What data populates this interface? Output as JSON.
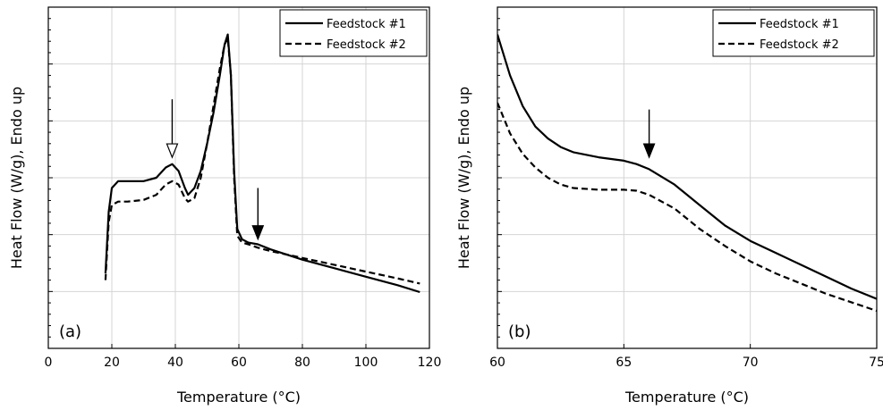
{
  "chart_data": [
    {
      "type": "line",
      "panel_label": "(a)",
      "xlabel": "Temperature (°C)",
      "ylabel": "Heat Flow (W/g), Endo up",
      "xlim": [
        0,
        120
      ],
      "xticks": [
        0,
        20,
        40,
        60,
        80,
        100,
        120
      ],
      "ylim": [
        0,
        100
      ],
      "y_tick_labels_shown": false,
      "grid": true,
      "legend": "top-right",
      "series": [
        {
          "name": "Feedstock #1",
          "style": "solid",
          "color": "#000000",
          "points": [
            [
              18,
              22
            ],
            [
              19,
              40
            ],
            [
              20,
              47
            ],
            [
              22,
              49
            ],
            [
              25,
              49
            ],
            [
              30,
              49
            ],
            [
              34,
              50
            ],
            [
              37,
              53
            ],
            [
              39,
              54
            ],
            [
              41,
              52
            ],
            [
              43,
              47
            ],
            [
              44,
              45
            ],
            [
              46,
              47
            ],
            [
              48,
              52
            ],
            [
              50,
              60
            ],
            [
              52,
              69
            ],
            [
              54,
              80
            ],
            [
              55.5,
              89
            ],
            [
              56.5,
              92
            ],
            [
              57.5,
              80
            ],
            [
              58.5,
              52
            ],
            [
              59.5,
              35
            ],
            [
              61,
              32
            ],
            [
              63,
              31
            ],
            [
              66,
              30.5
            ],
            [
              70,
              29
            ],
            [
              75,
              27.5
            ],
            [
              80,
              26
            ],
            [
              90,
              23.5
            ],
            [
              100,
              21
            ],
            [
              110,
              18.5
            ],
            [
              117,
              16.5
            ]
          ]
        },
        {
          "name": "Feedstock #2",
          "style": "dashed",
          "color": "#000000",
          "points": [
            [
              18,
              20
            ],
            [
              19,
              37
            ],
            [
              20,
              42
            ],
            [
              22,
              43
            ],
            [
              25,
              43
            ],
            [
              30,
              43.5
            ],
            [
              34,
              45
            ],
            [
              37,
              48
            ],
            [
              39,
              49
            ],
            [
              41,
              48
            ],
            [
              43,
              44
            ],
            [
              44,
              43
            ],
            [
              46,
              44
            ],
            [
              48,
              50
            ],
            [
              50,
              60
            ],
            [
              52,
              71
            ],
            [
              54,
              82
            ],
            [
              55.5,
              89
            ],
            [
              56.5,
              91
            ],
            [
              57.5,
              80
            ],
            [
              58.5,
              50
            ],
            [
              59.5,
              33
            ],
            [
              61,
              31
            ],
            [
              63,
              30.5
            ],
            [
              66,
              29.5
            ],
            [
              70,
              28.5
            ],
            [
              75,
              27.5
            ],
            [
              80,
              26.5
            ],
            [
              90,
              24.5
            ],
            [
              100,
              22.5
            ],
            [
              110,
              20.5
            ],
            [
              117,
              19
            ]
          ]
        }
      ],
      "annotations": [
        {
          "type": "arrow",
          "style": "hollow",
          "x": 39,
          "y_tip": 56,
          "y_tail": 73
        },
        {
          "type": "arrow",
          "style": "filled",
          "x": 66,
          "y_tip": 32,
          "y_tail": 47
        }
      ]
    },
    {
      "type": "line",
      "panel_label": "(b)",
      "xlabel": "Temperature (°C)",
      "ylabel": "Heat Flow (W/g), Endo up",
      "xlim": [
        60,
        75
      ],
      "xticks": [
        60,
        65,
        70,
        75
      ],
      "ylim": [
        0,
        100
      ],
      "y_tick_labels_shown": false,
      "grid": true,
      "legend": "top-right",
      "series": [
        {
          "name": "Feedstock #1",
          "style": "solid",
          "color": "#000000",
          "points": [
            [
              60,
              92
            ],
            [
              60.5,
              80
            ],
            [
              61,
              71
            ],
            [
              61.5,
              65
            ],
            [
              62,
              61.5
            ],
            [
              62.5,
              59
            ],
            [
              63,
              57.5
            ],
            [
              64,
              56
            ],
            [
              65,
              55
            ],
            [
              65.5,
              54
            ],
            [
              66,
              52.5
            ],
            [
              67,
              48
            ],
            [
              68,
              42
            ],
            [
              69,
              36
            ],
            [
              70,
              31.5
            ],
            [
              71,
              28
            ],
            [
              72,
              24.5
            ],
            [
              73,
              21
            ],
            [
              74,
              17.5
            ],
            [
              75,
              14.5
            ]
          ]
        },
        {
          "name": "Feedstock #2",
          "style": "dashed",
          "color": "#000000",
          "points": [
            [
              60,
              72
            ],
            [
              60.5,
              63
            ],
            [
              61,
              57
            ],
            [
              61.5,
              53
            ],
            [
              62,
              50
            ],
            [
              62.5,
              48
            ],
            [
              63,
              47
            ],
            [
              64,
              46.5
            ],
            [
              65,
              46.5
            ],
            [
              65.5,
              46.2
            ],
            [
              66,
              45
            ],
            [
              67,
              41
            ],
            [
              68,
              35
            ],
            [
              69,
              30
            ],
            [
              70,
              25.5
            ],
            [
              71,
              22
            ],
            [
              72,
              19
            ],
            [
              73,
              16
            ],
            [
              74,
              13.5
            ],
            [
              75,
              11
            ]
          ]
        }
      ],
      "annotations": [
        {
          "type": "arrow",
          "style": "filled",
          "x": 66,
          "y_tip": 56,
          "y_tail": 70
        }
      ]
    }
  ]
}
